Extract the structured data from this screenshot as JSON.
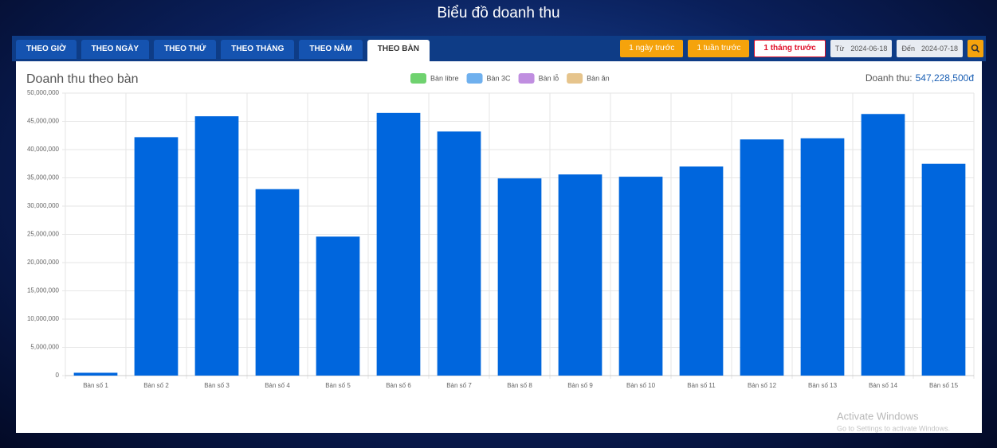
{
  "page_title": "Biểu đồ doanh thu",
  "tabs": [
    "THEO GIỜ",
    "THEO NGÀY",
    "THEO THỨ",
    "THEO THÁNG",
    "THEO NĂM",
    "THEO BÀN"
  ],
  "active_tab": 5,
  "quick_ranges": [
    "1 ngày trước",
    "1 tuần trước",
    "1 tháng trước"
  ],
  "date_from": {
    "label": "Từ",
    "value": "2024-06-18"
  },
  "date_to": {
    "label": "Đến",
    "value": "2024-07-18"
  },
  "watermark": {
    "title": "Activate Windows",
    "subtitle": "Go to Settings to activate Windows."
  },
  "chart_data": {
    "type": "bar",
    "title": "Doanh thu theo bàn",
    "total_label": "Doanh thu:",
    "total_value": "547,228,500đ",
    "legend": [
      {
        "name": "Bàn libre",
        "color": "#6fd26f"
      },
      {
        "name": "Bàn 3C",
        "color": "#6fb0ee"
      },
      {
        "name": "Bàn lỗ",
        "color": "#c08ee0"
      },
      {
        "name": "Bàn ăn",
        "color": "#e6c48c"
      }
    ],
    "color": "#0066dd",
    "categories": [
      "Bàn số 1",
      "Bàn số 2",
      "Bàn số 3",
      "Bàn số 4",
      "Bàn số 5",
      "Bàn số 6",
      "Bàn số 7",
      "Bàn số 8",
      "Bàn số 9",
      "Bàn số 10",
      "Bàn số 11",
      "Bàn số 12",
      "Bàn số 13",
      "Bàn số 14",
      "Bàn số 15"
    ],
    "values": [
      500000,
      42200000,
      45900000,
      33000000,
      24600000,
      46500000,
      43200000,
      34900000,
      35600000,
      35200000,
      37000000,
      41800000,
      42000000,
      46300000,
      37500000
    ],
    "ylim": [
      0,
      50000000
    ],
    "yticks": [
      0,
      {
        "value": 5000000,
        "label": "5,000,000"
      },
      {
        "value": 10000000,
        "label": "10,000,000"
      },
      {
        "value": 15000000,
        "label": "15,000,000"
      },
      {
        "value": 20000000,
        "label": "20,000,000"
      },
      {
        "value": 25000000,
        "label": "25,000,000"
      },
      {
        "value": 30000000,
        "label": "30,000,000"
      },
      {
        "value": 35000000,
        "label": "35,000,000"
      },
      {
        "value": 40000000,
        "label": "40,000,000"
      },
      {
        "value": 45000000,
        "label": "45,000,000"
      },
      {
        "value": 50000000,
        "label": "50,000,000"
      }
    ],
    "grid": true
  }
}
